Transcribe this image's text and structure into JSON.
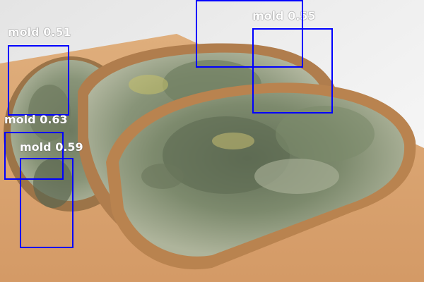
{
  "image": {
    "subject": "moldy-bread-slices",
    "colors": {
      "box": "#0000ff",
      "label": "#ffffff"
    }
  },
  "detections": [
    {
      "label": "mold",
      "score": "0.51"
    },
    {
      "label": "mold",
      "score": "0.55"
    },
    {
      "label": "mold",
      "score": "0.63"
    },
    {
      "label": "mold",
      "score": "0.59"
    },
    {
      "label": "mold",
      "score": ""
    }
  ]
}
